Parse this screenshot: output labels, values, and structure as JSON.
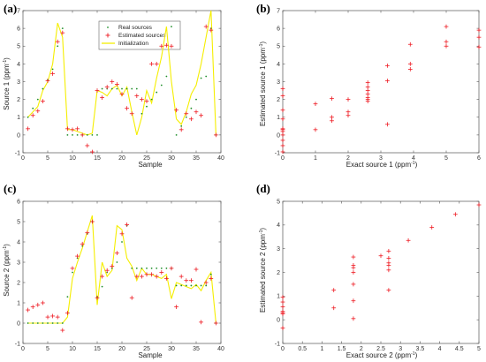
{
  "colors": {
    "real": "#1f8f2a",
    "estimated": "#ee1c24",
    "initialization": "#f5ee00",
    "axis": "#555555"
  },
  "chart_data": [
    {
      "panel": "(a)",
      "type": "line",
      "xlabel": "Sample",
      "ylabel_main": "Source 1 (ppm",
      "ylabel_sup": "-1",
      "ylabel_close": ")",
      "xlim": [
        0,
        40
      ],
      "ylim": [
        -1,
        7
      ],
      "xticks": [
        0,
        5,
        10,
        15,
        20,
        25,
        30,
        35,
        40
      ],
      "yticks": [
        -1,
        0,
        1,
        2,
        3,
        4,
        5,
        6,
        7
      ],
      "legend_position": "top-center",
      "legend": [
        "Real sources",
        "Estimated sources",
        "Initialization"
      ],
      "x": [
        1,
        2,
        3,
        4,
        5,
        6,
        7,
        8,
        9,
        10,
        11,
        12,
        13,
        14,
        15,
        16,
        17,
        18,
        19,
        20,
        21,
        22,
        23,
        24,
        25,
        26,
        27,
        28,
        29,
        30,
        31,
        32,
        33,
        34,
        35,
        36,
        37,
        38,
        39
      ],
      "real": [
        1.0,
        1.5,
        2.0,
        2.6,
        3.1,
        3.7,
        5.0,
        6.0,
        0.0,
        0.0,
        0.0,
        0.0,
        0.0,
        0.0,
        0.0,
        2.6,
        2.6,
        2.6,
        2.6,
        2.6,
        2.6,
        2.6,
        2.6,
        1.2,
        1.6,
        2.0,
        2.4,
        2.8,
        3.3,
        6.1,
        0.0,
        0.5,
        1.0,
        1.5,
        2.0,
        3.2,
        3.3,
        6.0,
        0.0
      ],
      "estimated": [
        0.35,
        1.1,
        1.35,
        1.9,
        3.05,
        3.45,
        5.25,
        5.75,
        0.35,
        0.3,
        0.35,
        0.0,
        -0.6,
        -0.95,
        2.5,
        2.1,
        2.7,
        3.0,
        2.85,
        2.3,
        1.5,
        1.2,
        2.2,
        2.0,
        1.9,
        4.0,
        4.0,
        5.0,
        5.05,
        5.0,
        1.4,
        0.3,
        1.2,
        0.9,
        1.3,
        1.1,
        6.1,
        5.9,
        0.0
      ],
      "initialization": [
        1.0,
        1.3,
        1.6,
        2.5,
        3.0,
        4.0,
        6.3,
        5.5,
        0.3,
        0.3,
        0.2,
        0.1,
        0.0,
        0.1,
        2.5,
        2.4,
        2.2,
        2.6,
        2.8,
        2.2,
        2.7,
        1.3,
        0.0,
        1.0,
        2.5,
        1.8,
        3.2,
        4.4,
        6.1,
        3.0,
        0.9,
        0.6,
        1.3,
        2.3,
        2.8,
        4.0,
        5.5,
        7.0,
        0.0
      ]
    },
    {
      "panel": "(b)",
      "type": "scatter",
      "xlabel_main": "Exact source 1 (ppm",
      "xlabel_sup": "-1",
      "xlabel_close": ")",
      "ylabel_main": "Estimated source 1 (ppm",
      "ylabel_sup": "-1",
      "ylabel_close": ")",
      "xlim": [
        0,
        6
      ],
      "ylim": [
        -1,
        7
      ],
      "xticks": [
        0,
        1,
        2,
        3,
        4,
        5,
        6
      ],
      "yticks": [
        -1,
        0,
        1,
        2,
        3,
        4,
        5,
        6,
        7
      ],
      "points": [
        [
          0,
          0.35
        ],
        [
          0,
          0.3
        ],
        [
          0,
          0
        ],
        [
          0,
          -0.6
        ],
        [
          0,
          -0.95
        ],
        [
          0,
          1.4
        ],
        [
          0,
          0.9
        ],
        [
          0,
          2.2
        ],
        [
          0,
          2.6
        ],
        [
          0,
          0.2
        ],
        [
          0,
          -0.3
        ],
        [
          1,
          1.75
        ],
        [
          1,
          0.3
        ],
        [
          1.5,
          2.05
        ],
        [
          1.5,
          1.0
        ],
        [
          1.5,
          0.8
        ],
        [
          2,
          2.0
        ],
        [
          2,
          1.3
        ],
        [
          2,
          1.1
        ],
        [
          2.6,
          2.95
        ],
        [
          2.6,
          2.7
        ],
        [
          2.6,
          2.5
        ],
        [
          2.6,
          2.3
        ],
        [
          2.6,
          2.1
        ],
        [
          2.6,
          2.0
        ],
        [
          2.6,
          1.9
        ],
        [
          3.2,
          3.9
        ],
        [
          3.2,
          3.05
        ],
        [
          3.2,
          0.6
        ],
        [
          3.9,
          5.1
        ],
        [
          3.9,
          4.0
        ],
        [
          3.9,
          3.7
        ],
        [
          5,
          6.1
        ],
        [
          5,
          5.25
        ],
        [
          5,
          5.0
        ],
        [
          6,
          5.9
        ],
        [
          6,
          5.5
        ],
        [
          6,
          4.95
        ]
      ]
    },
    {
      "panel": "(c)",
      "type": "line",
      "xlabel": "Sample",
      "ylabel_main": "Source 2 (ppm",
      "ylabel_sup": "-1",
      "ylabel_close": ")",
      "xlim": [
        0,
        40
      ],
      "ylim": [
        -1,
        6
      ],
      "xticks": [
        0,
        5,
        10,
        15,
        20,
        25,
        30,
        35,
        40
      ],
      "yticks": [
        -1,
        0,
        1,
        2,
        3,
        4,
        5,
        6
      ],
      "x": [
        1,
        2,
        3,
        4,
        5,
        6,
        7,
        8,
        9,
        10,
        11,
        12,
        13,
        14,
        15,
        16,
        17,
        18,
        19,
        20,
        21,
        22,
        23,
        24,
        25,
        26,
        27,
        28,
        29,
        30,
        31,
        32,
        33,
        34,
        35,
        36,
        37,
        38,
        39
      ],
      "real": [
        0,
        0,
        0,
        0,
        0,
        0,
        0,
        0,
        1.3,
        2.5,
        3.2,
        3.8,
        4.4,
        5.0,
        1.3,
        1.8,
        2.5,
        2.7,
        3.0,
        4.0,
        4.8,
        2.7,
        2.7,
        2.7,
        2.7,
        2.7,
        2.7,
        2.7,
        2.7,
        2.7,
        1.85,
        1.85,
        1.85,
        1.85,
        1.85,
        1.85,
        1.85,
        2.4,
        0
      ],
      "estimated": [
        0.65,
        0.8,
        0.9,
        1.0,
        0.3,
        0.35,
        0.3,
        -0.35,
        0.5,
        2.7,
        3.3,
        3.9,
        4.45,
        5.0,
        1.25,
        2.3,
        2.6,
        2.8,
        3.45,
        4.4,
        4.85,
        1.25,
        2.3,
        2.3,
        2.4,
        2.4,
        2.3,
        2.5,
        2.2,
        2.7,
        0.8,
        2.3,
        2.1,
        2.1,
        2.65,
        0.05,
        2.0,
        2.2,
        0.0
      ],
      "initialization": [
        0,
        0,
        0,
        0,
        0,
        0,
        0,
        0,
        0.3,
        2.2,
        3.0,
        3.7,
        4.5,
        5.3,
        0.9,
        3.0,
        2.3,
        2.6,
        4.8,
        4.6,
        3.2,
        2.8,
        2.1,
        2.7,
        2.4,
        2.4,
        2.3,
        2.2,
        2.4,
        1.2,
        2.0,
        1.9,
        1.8,
        1.7,
        1.9,
        1.6,
        2.1,
        2.5,
        0
      ]
    },
    {
      "panel": "(d)",
      "type": "scatter",
      "xlabel_main": "Exact source 2 (ppm",
      "xlabel_sup": "-1",
      "xlabel_close": ")",
      "ylabel_main": "Estimated source 2 (ppm",
      "ylabel_sup": "-1",
      "ylabel_close": ")",
      "xlim": [
        0,
        5
      ],
      "ylim": [
        -1,
        5
      ],
      "xticks": [
        0,
        0.5,
        1,
        1.5,
        2,
        2.5,
        3,
        3.5,
        4,
        4.5,
        5
      ],
      "yticks": [
        -1,
        0,
        1,
        2,
        3,
        4,
        5
      ],
      "points": [
        [
          0,
          0.95
        ],
        [
          0,
          0.75
        ],
        [
          0,
          0.55
        ],
        [
          0,
          0.35
        ],
        [
          0,
          0.3
        ],
        [
          0,
          0.25
        ],
        [
          0,
          -0.35
        ],
        [
          1.3,
          1.25
        ],
        [
          1.3,
          0.5
        ],
        [
          1.8,
          2.65
        ],
        [
          1.8,
          2.3
        ],
        [
          1.8,
          2.2
        ],
        [
          1.8,
          2.0
        ],
        [
          1.8,
          1.5
        ],
        [
          1.8,
          0.8
        ],
        [
          1.8,
          0.05
        ],
        [
          2.5,
          2.7
        ],
        [
          2.7,
          2.9
        ],
        [
          2.7,
          2.6
        ],
        [
          2.7,
          2.4
        ],
        [
          2.7,
          2.3
        ],
        [
          2.7,
          2.1
        ],
        [
          2.7,
          1.25
        ],
        [
          3.2,
          3.35
        ],
        [
          3.8,
          3.9
        ],
        [
          4.4,
          4.45
        ],
        [
          5,
          4.85
        ]
      ]
    }
  ]
}
